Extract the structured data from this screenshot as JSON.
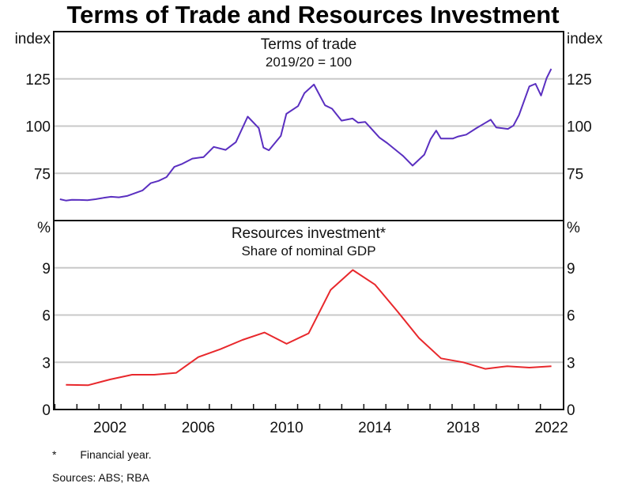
{
  "title": "Terms of Trade and Resources Investment",
  "footnotes": {
    "star_marker": "*",
    "star_text": "Financial year.",
    "sources": "Sources: ABS; RBA"
  },
  "colors": {
    "terms_of_trade": "#5a2fc0",
    "resources_investment": "#e8282c",
    "grid": "#c8c8c8"
  },
  "chart_data": [
    {
      "type": "line",
      "title": "Terms of trade",
      "subtitle": "2019/20 = 100",
      "ylabel_left": "index",
      "ylabel_right": "index",
      "ylim": [
        50,
        150
      ],
      "yticks": [
        75,
        100,
        125
      ],
      "xlim": [
        1999.45,
        2022.55
      ],
      "grid": true,
      "series": [
        {
          "name": "Terms of trade",
          "x": [
            1999.73,
            2000.0,
            2000.27,
            2000.62,
            2000.98,
            2001.34,
            2001.7,
            2002.05,
            2002.4,
            2002.77,
            2003.13,
            2003.48,
            2003.84,
            2004.2,
            2004.56,
            2004.91,
            2005.27,
            2005.73,
            2006.24,
            2006.7,
            2007.24,
            2007.7,
            2008.24,
            2008.74,
            2008.95,
            2009.2,
            2009.74,
            2009.99,
            2010.52,
            2010.81,
            2011.24,
            2011.74,
            2012.06,
            2012.49,
            2012.99,
            2013.24,
            2013.56,
            2014.21,
            2014.56,
            2015.28,
            2015.71,
            2016.24,
            2016.53,
            2016.78,
            2016.99,
            2017.53,
            2017.78,
            2018.14,
            2018.6,
            2018.99,
            2019.25,
            2019.5,
            2020.03,
            2020.28,
            2020.53,
            2021.0,
            2021.28,
            2021.53,
            2021.78,
            2021.99
          ],
          "values": [
            61.3,
            60.6,
            61.0,
            60.9,
            60.8,
            61.3,
            62.0,
            62.6,
            62.3,
            63.0,
            64.5,
            66.0,
            69.8,
            71.0,
            73.0,
            78.4,
            80.0,
            82.8,
            83.6,
            89.0,
            87.4,
            91.5,
            105.0,
            98.9,
            88.6,
            87.2,
            94.8,
            106.5,
            110.6,
            117.5,
            122.0,
            111.0,
            109.2,
            102.9,
            104.0,
            101.8,
            102.2,
            93.9,
            91.0,
            84.2,
            79.1,
            84.9,
            93.2,
            97.6,
            93.4,
            93.4,
            94.5,
            95.5,
            98.9,
            101.6,
            103.4,
            99.3,
            98.5,
            100.3,
            105.8,
            121.0,
            122.4,
            116.2,
            125.3,
            130.3
          ]
        }
      ]
    },
    {
      "type": "line",
      "title": "Resources investment*",
      "subtitle": "Share of nominal GDP",
      "ylabel_left": "%",
      "ylabel_right": "%",
      "ylim": [
        0,
        12
      ],
      "yticks": [
        0,
        3,
        6,
        9
      ],
      "xlim": [
        1999.45,
        2022.55
      ],
      "xticklabels": [
        "2002",
        "2006",
        "2010",
        "2014",
        "2018",
        "2022"
      ],
      "xtick_label_years": [
        2002,
        2006,
        2010,
        2014,
        2018,
        2022
      ],
      "grid": true,
      "series": [
        {
          "name": "Resources investment",
          "x": [
            2000,
            2001,
            2002,
            2003,
            2004,
            2005,
            2006,
            2007,
            2008,
            2009,
            2010,
            2011,
            2012,
            2013,
            2014,
            2015,
            2016,
            2017,
            2018,
            2019,
            2020,
            2021,
            2022
          ],
          "values": [
            1.57,
            1.54,
            1.91,
            2.21,
            2.21,
            2.33,
            3.33,
            3.83,
            4.42,
            4.89,
            4.17,
            4.84,
            7.6,
            8.86,
            7.94,
            6.27,
            4.54,
            3.25,
            3.0,
            2.58,
            2.75,
            2.66,
            2.75
          ]
        }
      ]
    }
  ]
}
